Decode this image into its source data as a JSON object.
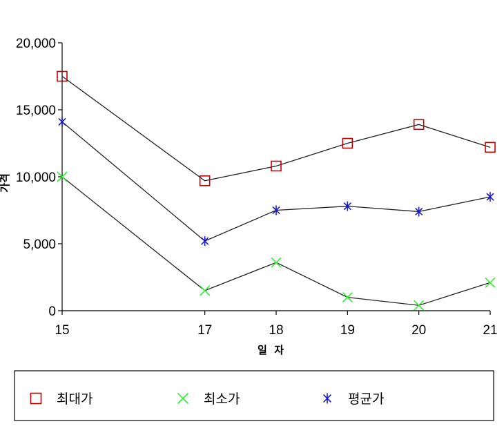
{
  "chart_data": {
    "type": "line",
    "title": "",
    "xlabel": "일  자",
    "ylabel": "가격",
    "categories": [
      "15",
      "17",
      "18",
      "19",
      "20",
      "21"
    ],
    "x": [
      15,
      17,
      18,
      19,
      20,
      21
    ],
    "yticks": [
      "0",
      "5,000",
      "10,000",
      "15,000",
      "20,000"
    ],
    "ylim": [
      0,
      20000
    ],
    "grid": false,
    "legend_position": "bottom",
    "series": [
      {
        "name": "최대가",
        "marker": "square",
        "color": "#c00000",
        "values": [
          17500,
          9700,
          10800,
          12500,
          13900,
          12200
        ]
      },
      {
        "name": "최소가",
        "marker": "x",
        "color": "#33ee33",
        "values": [
          10000,
          1500,
          3600,
          1000,
          400,
          2100
        ]
      },
      {
        "name": "평균가",
        "marker": "asterisk",
        "color": "#1a1acc",
        "values": [
          14100,
          5200,
          7500,
          7800,
          7400,
          8500
        ]
      }
    ],
    "line_color": "#222222"
  }
}
